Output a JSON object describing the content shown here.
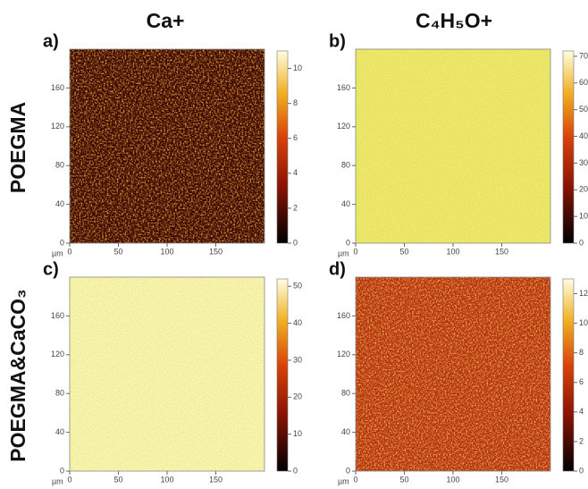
{
  "columns": [
    "Ca+",
    "C₄H₅O+"
  ],
  "rows": [
    "POEGMA",
    "POEGMA&CaCO₃"
  ],
  "axes": {
    "unit": "µm",
    "xlim": [
      0,
      200
    ],
    "xticks": [
      0,
      50,
      100,
      150
    ],
    "ylim": [
      0,
      200
    ],
    "yticks": [
      0,
      40,
      80,
      120,
      160
    ]
  },
  "panels": [
    {
      "label": "a)",
      "clim": [
        0,
        11
      ],
      "cticks": [
        0,
        2,
        4,
        6,
        8,
        10
      ]
    },
    {
      "label": "b)",
      "clim": [
        0,
        72
      ],
      "cticks": [
        0,
        10,
        20,
        30,
        40,
        50,
        60,
        70
      ]
    },
    {
      "label": "c)",
      "clim": [
        0,
        52
      ],
      "cticks": [
        0,
        10,
        20,
        30,
        40,
        50
      ]
    },
    {
      "label": "d)",
      "clim": [
        0,
        13
      ],
      "cticks": [
        0,
        2,
        4,
        6,
        8,
        10,
        12
      ]
    }
  ]
}
